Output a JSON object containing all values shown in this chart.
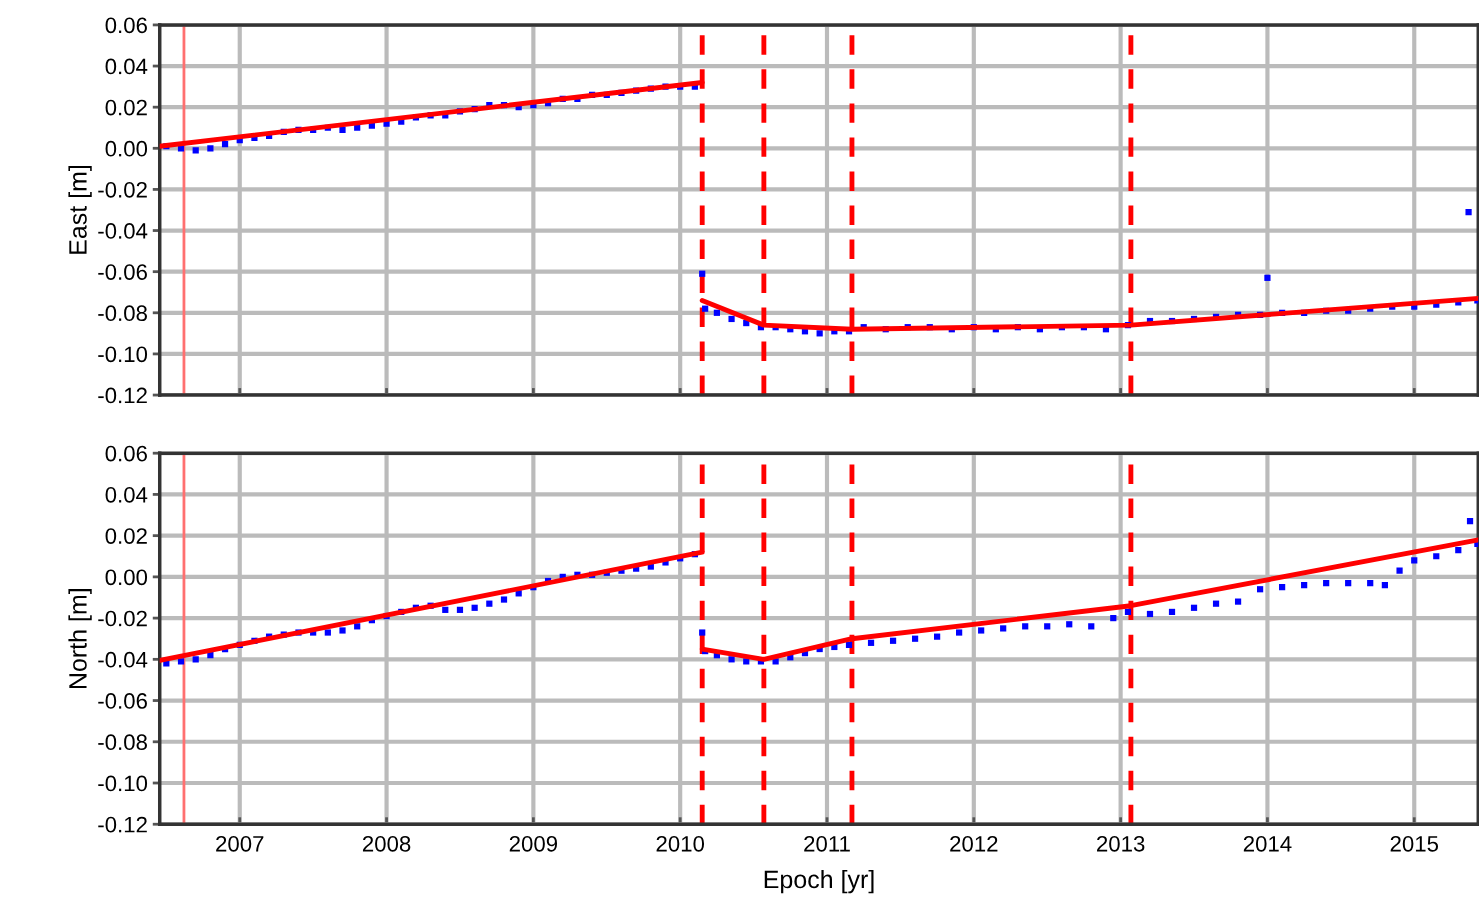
{
  "chart_data": [
    {
      "type": "scatter",
      "ylabel": "East [m]",
      "xlim": [
        2006.455,
        2015.436
      ],
      "xticks": [
        2007,
        2008,
        2009,
        2010,
        2011,
        2012,
        2013,
        2014,
        2015
      ],
      "ylim": [
        -0.12,
        0.06
      ],
      "yticks": [
        {
          "value": -0.12,
          "label": "-0.12"
        },
        {
          "value": -0.1,
          "label": "-0.10"
        },
        {
          "value": -0.08,
          "label": "-0.08"
        },
        {
          "value": -0.06,
          "label": "-0.06"
        },
        {
          "value": -0.04,
          "label": "-0.04"
        },
        {
          "value": -0.02,
          "label": "-0.02"
        },
        {
          "value": 0,
          "label": "0.00"
        },
        {
          "value": 0.02,
          "label": "0.02"
        },
        {
          "value": 0.04,
          "label": "0.04"
        },
        {
          "value": 0.06,
          "label": "0.06"
        }
      ],
      "grid": true,
      "tick_labels": "y",
      "series": [
        {
          "marker": "square",
          "color": "#0000ff",
          "x": [
            2006.5,
            2006.6,
            2006.7,
            2006.8,
            2006.9,
            2007.0,
            2007.1,
            2007.2,
            2007.3,
            2007.4,
            2007.5,
            2007.6,
            2007.7,
            2007.8,
            2007.9,
            2008.0,
            2008.1,
            2008.2,
            2008.3,
            2008.4,
            2008.5,
            2008.6,
            2008.7,
            2008.8,
            2008.9,
            2009.0,
            2009.1,
            2009.2,
            2009.3,
            2009.4,
            2009.5,
            2009.6,
            2009.7,
            2009.8,
            2009.9,
            2010.0,
            2010.1,
            2010.15,
            2010.17,
            2010.25,
            2010.35,
            2010.45,
            2010.55,
            2010.65,
            2010.75,
            2010.85,
            2010.95,
            2011.05,
            2011.15,
            2011.25,
            2011.4,
            2011.55,
            2011.7,
            2011.85,
            2012.0,
            2012.15,
            2012.3,
            2012.45,
            2012.6,
            2012.75,
            2012.9,
            2013.05,
            2013.2,
            2013.35,
            2013.5,
            2013.65,
            2013.8,
            2013.95,
            2014.0,
            2014.1,
            2014.25,
            2014.4,
            2014.55,
            2014.7,
            2014.85,
            2015.0,
            2015.15,
            2015.3,
            2015.37,
            2015.43
          ],
          "values": [
            0.001,
            0.0,
            -0.001,
            0.0,
            0.002,
            0.004,
            0.005,
            0.006,
            0.008,
            0.009,
            0.009,
            0.01,
            0.009,
            0.01,
            0.011,
            0.012,
            0.013,
            0.015,
            0.016,
            0.016,
            0.018,
            0.019,
            0.021,
            0.021,
            0.02,
            0.021,
            0.022,
            0.024,
            0.024,
            0.026,
            0.026,
            0.027,
            0.028,
            0.029,
            0.03,
            0.03,
            0.03,
            -0.061,
            -0.078,
            -0.08,
            -0.083,
            -0.085,
            -0.087,
            -0.087,
            -0.088,
            -0.089,
            -0.09,
            -0.089,
            -0.089,
            -0.087,
            -0.088,
            -0.087,
            -0.087,
            -0.088,
            -0.087,
            -0.088,
            -0.087,
            -0.088,
            -0.087,
            -0.087,
            -0.088,
            -0.086,
            -0.084,
            -0.084,
            -0.083,
            -0.082,
            -0.081,
            -0.081,
            -0.063,
            -0.08,
            -0.08,
            -0.079,
            -0.079,
            -0.078,
            -0.077,
            -0.077,
            -0.076,
            -0.075,
            -0.031,
            -0.074
          ]
        },
        {
          "type": "line",
          "color": "#ff0000",
          "x": [
            2006.455,
            2010.15
          ],
          "values": [
            0.001,
            0.032
          ]
        },
        {
          "type": "line",
          "color": "#ff0000",
          "x": [
            2010.15,
            2010.57,
            2011.17,
            2013.07,
            2015.436
          ],
          "values": [
            -0.074,
            -0.086,
            -0.088,
            -0.086,
            -0.073
          ]
        }
      ],
      "ref_lines": [
        {
          "axis": "x",
          "value": 2006.62,
          "color": "#ff7070",
          "line_style": "solid"
        },
        {
          "axis": "x",
          "value": 2010.15,
          "color": "#ff0000",
          "line_style": "dashed"
        },
        {
          "axis": "x",
          "value": 2010.57,
          "color": "#ff0000",
          "line_style": "dashed"
        },
        {
          "axis": "x",
          "value": 2011.17,
          "color": "#ff0000",
          "line_style": "dashed"
        },
        {
          "axis": "x",
          "value": 2013.07,
          "color": "#ff0000",
          "line_style": "dashed"
        }
      ]
    },
    {
      "type": "scatter",
      "ylabel": "North [m]",
      "xlabel": "Epoch [yr]",
      "xlim": [
        2006.455,
        2015.436
      ],
      "xticks": [
        2007,
        2008,
        2009,
        2010,
        2011,
        2012,
        2013,
        2014,
        2015
      ],
      "ylim": [
        -0.12,
        0.06
      ],
      "yticks": [
        {
          "value": -0.12,
          "label": "-0.12"
        },
        {
          "value": -0.1,
          "label": "-0.10"
        },
        {
          "value": -0.08,
          "label": "-0.08"
        },
        {
          "value": -0.06,
          "label": "-0.06"
        },
        {
          "value": -0.04,
          "label": "-0.04"
        },
        {
          "value": -0.02,
          "label": "-0.02"
        },
        {
          "value": 0,
          "label": "0.00"
        },
        {
          "value": 0.02,
          "label": "0.02"
        },
        {
          "value": 0.04,
          "label": "0.04"
        },
        {
          "value": 0.06,
          "label": "0.06"
        }
      ],
      "grid": true,
      "series": [
        {
          "marker": "square",
          "color": "#0000ff",
          "x": [
            2006.5,
            2006.6,
            2006.7,
            2006.8,
            2006.9,
            2007.0,
            2007.1,
            2007.2,
            2007.3,
            2007.4,
            2007.5,
            2007.6,
            2007.7,
            2007.8,
            2007.9,
            2008.0,
            2008.1,
            2008.2,
            2008.3,
            2008.4,
            2008.5,
            2008.6,
            2008.7,
            2008.8,
            2008.9,
            2009.0,
            2009.1,
            2009.2,
            2009.3,
            2009.4,
            2009.5,
            2009.6,
            2009.7,
            2009.8,
            2009.9,
            2010.0,
            2010.1,
            2010.15,
            2010.17,
            2010.25,
            2010.35,
            2010.45,
            2010.55,
            2010.65,
            2010.75,
            2010.85,
            2010.95,
            2011.05,
            2011.15,
            2011.3,
            2011.45,
            2011.6,
            2011.75,
            2011.9,
            2012.05,
            2012.2,
            2012.35,
            2012.5,
            2012.65,
            2012.8,
            2012.95,
            2013.05,
            2013.2,
            2013.35,
            2013.5,
            2013.65,
            2013.8,
            2013.95,
            2014.1,
            2014.25,
            2014.4,
            2014.55,
            2014.7,
            2014.8,
            2014.9,
            2015.0,
            2015.15,
            2015.3,
            2015.38,
            2015.43
          ],
          "values": [
            -0.042,
            -0.041,
            -0.04,
            -0.038,
            -0.035,
            -0.033,
            -0.031,
            -0.029,
            -0.028,
            -0.027,
            -0.027,
            -0.027,
            -0.026,
            -0.024,
            -0.021,
            -0.019,
            -0.017,
            -0.015,
            -0.014,
            -0.016,
            -0.016,
            -0.015,
            -0.013,
            -0.011,
            -0.008,
            -0.005,
            -0.002,
            0.0,
            0.001,
            0.001,
            0.002,
            0.003,
            0.004,
            0.005,
            0.007,
            0.009,
            0.011,
            -0.027,
            -0.036,
            -0.038,
            -0.04,
            -0.041,
            -0.041,
            -0.041,
            -0.039,
            -0.037,
            -0.035,
            -0.034,
            -0.033,
            -0.032,
            -0.031,
            -0.03,
            -0.029,
            -0.027,
            -0.026,
            -0.025,
            -0.024,
            -0.024,
            -0.023,
            -0.024,
            -0.02,
            -0.017,
            -0.018,
            -0.017,
            -0.015,
            -0.013,
            -0.012,
            -0.006,
            -0.005,
            -0.004,
            -0.003,
            -0.003,
            -0.003,
            -0.004,
            0.003,
            0.008,
            0.01,
            0.013,
            0.027,
            0.016
          ]
        },
        {
          "type": "line",
          "color": "#ff0000",
          "x": [
            2006.455,
            2010.15
          ],
          "values": [
            -0.0405,
            0.012
          ]
        },
        {
          "type": "line",
          "color": "#ff0000",
          "x": [
            2010.15,
            2010.57,
            2011.17,
            2013.07,
            2015.436
          ],
          "values": [
            -0.035,
            -0.04,
            -0.03,
            -0.014,
            0.018
          ]
        }
      ],
      "ref_lines": [
        {
          "axis": "x",
          "value": 2006.62,
          "color": "#ff7070",
          "line_style": "solid"
        },
        {
          "axis": "x",
          "value": 2010.15,
          "color": "#ff0000",
          "line_style": "dashed"
        },
        {
          "axis": "x",
          "value": 2010.57,
          "color": "#ff0000",
          "line_style": "dashed"
        },
        {
          "axis": "x",
          "value": 2011.17,
          "color": "#ff0000",
          "line_style": "dashed"
        },
        {
          "axis": "x",
          "value": 2013.07,
          "color": "#ff0000",
          "line_style": "dashed"
        }
      ]
    }
  ]
}
